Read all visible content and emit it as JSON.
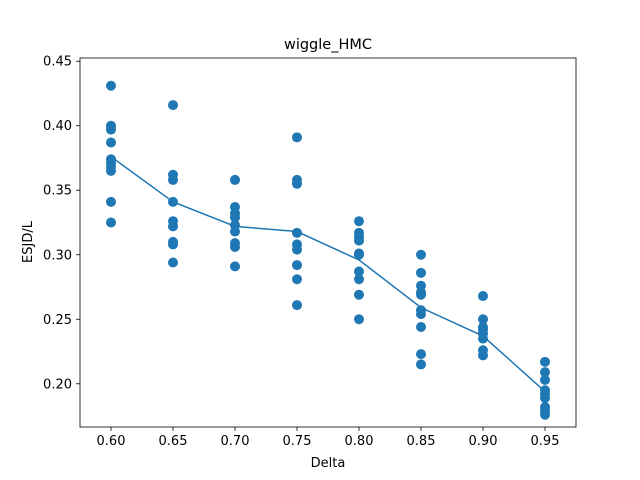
{
  "chart_data": {
    "type": "scatter",
    "title": "wiggle_HMC",
    "xlabel": "Delta",
    "ylabel": "ESJD/L",
    "xlim": [
      0.575,
      0.975
    ],
    "ylim": [
      0.1665,
      0.4525
    ],
    "xticks": [
      "0.60",
      "0.65",
      "0.70",
      "0.75",
      "0.80",
      "0.85",
      "0.90",
      "0.95"
    ],
    "yticks": [
      "0.20",
      "0.25",
      "0.30",
      "0.35",
      "0.40",
      "0.45"
    ],
    "grid": false,
    "colors": {
      "series": "#1f77b4"
    },
    "scatter": [
      {
        "x": 0.6,
        "y": 0.431
      },
      {
        "x": 0.6,
        "y": 0.4
      },
      {
        "x": 0.6,
        "y": 0.397
      },
      {
        "x": 0.6,
        "y": 0.387
      },
      {
        "x": 0.6,
        "y": 0.374
      },
      {
        "x": 0.6,
        "y": 0.371
      },
      {
        "x": 0.6,
        "y": 0.368
      },
      {
        "x": 0.6,
        "y": 0.365
      },
      {
        "x": 0.6,
        "y": 0.341
      },
      {
        "x": 0.6,
        "y": 0.325
      },
      {
        "x": 0.65,
        "y": 0.416
      },
      {
        "x": 0.65,
        "y": 0.362
      },
      {
        "x": 0.65,
        "y": 0.358
      },
      {
        "x": 0.65,
        "y": 0.341
      },
      {
        "x": 0.65,
        "y": 0.326
      },
      {
        "x": 0.65,
        "y": 0.322
      },
      {
        "x": 0.65,
        "y": 0.31
      },
      {
        "x": 0.65,
        "y": 0.308
      },
      {
        "x": 0.65,
        "y": 0.294
      },
      {
        "x": 0.7,
        "y": 0.358
      },
      {
        "x": 0.7,
        "y": 0.337
      },
      {
        "x": 0.7,
        "y": 0.332
      },
      {
        "x": 0.7,
        "y": 0.329
      },
      {
        "x": 0.7,
        "y": 0.323
      },
      {
        "x": 0.7,
        "y": 0.318
      },
      {
        "x": 0.7,
        "y": 0.309
      },
      {
        "x": 0.7,
        "y": 0.306
      },
      {
        "x": 0.7,
        "y": 0.291
      },
      {
        "x": 0.75,
        "y": 0.391
      },
      {
        "x": 0.75,
        "y": 0.358
      },
      {
        "x": 0.75,
        "y": 0.355
      },
      {
        "x": 0.75,
        "y": 0.317
      },
      {
        "x": 0.75,
        "y": 0.308
      },
      {
        "x": 0.75,
        "y": 0.304
      },
      {
        "x": 0.75,
        "y": 0.292
      },
      {
        "x": 0.75,
        "y": 0.281
      },
      {
        "x": 0.75,
        "y": 0.261
      },
      {
        "x": 0.8,
        "y": 0.326
      },
      {
        "x": 0.8,
        "y": 0.317
      },
      {
        "x": 0.8,
        "y": 0.314
      },
      {
        "x": 0.8,
        "y": 0.311
      },
      {
        "x": 0.8,
        "y": 0.301
      },
      {
        "x": 0.8,
        "y": 0.3
      },
      {
        "x": 0.8,
        "y": 0.287
      },
      {
        "x": 0.8,
        "y": 0.281
      },
      {
        "x": 0.8,
        "y": 0.269
      },
      {
        "x": 0.8,
        "y": 0.25
      },
      {
        "x": 0.85,
        "y": 0.3
      },
      {
        "x": 0.85,
        "y": 0.286
      },
      {
        "x": 0.85,
        "y": 0.276
      },
      {
        "x": 0.85,
        "y": 0.271
      },
      {
        "x": 0.85,
        "y": 0.269
      },
      {
        "x": 0.85,
        "y": 0.257
      },
      {
        "x": 0.85,
        "y": 0.254
      },
      {
        "x": 0.85,
        "y": 0.244
      },
      {
        "x": 0.85,
        "y": 0.223
      },
      {
        "x": 0.85,
        "y": 0.215
      },
      {
        "x": 0.9,
        "y": 0.268
      },
      {
        "x": 0.9,
        "y": 0.25
      },
      {
        "x": 0.9,
        "y": 0.244
      },
      {
        "x": 0.9,
        "y": 0.242
      },
      {
        "x": 0.9,
        "y": 0.239
      },
      {
        "x": 0.9,
        "y": 0.235
      },
      {
        "x": 0.9,
        "y": 0.226
      },
      {
        "x": 0.9,
        "y": 0.222
      },
      {
        "x": 0.95,
        "y": 0.217
      },
      {
        "x": 0.95,
        "y": 0.209
      },
      {
        "x": 0.95,
        "y": 0.203
      },
      {
        "x": 0.95,
        "y": 0.195
      },
      {
        "x": 0.95,
        "y": 0.192
      },
      {
        "x": 0.95,
        "y": 0.189
      },
      {
        "x": 0.95,
        "y": 0.182
      },
      {
        "x": 0.95,
        "y": 0.179
      },
      {
        "x": 0.95,
        "y": 0.176
      }
    ],
    "line": {
      "x": [
        0.6,
        0.65,
        0.7,
        0.75,
        0.8,
        0.85,
        0.9,
        0.95
      ],
      "y": [
        0.376,
        0.341,
        0.322,
        0.318,
        0.296,
        0.259,
        0.237,
        0.194
      ]
    }
  }
}
